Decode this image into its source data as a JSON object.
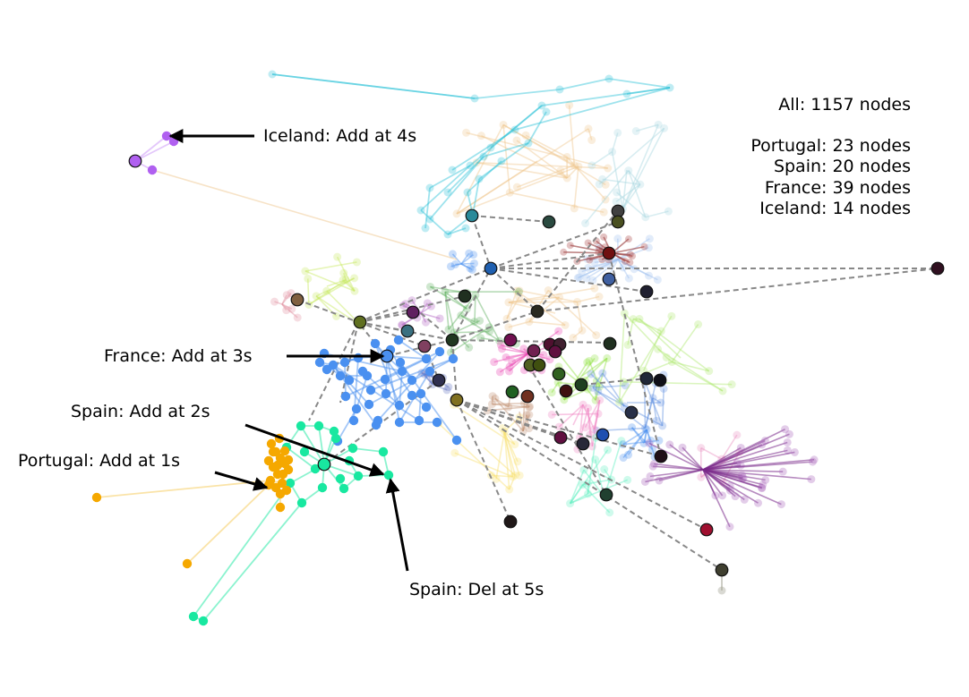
{
  "stats": {
    "total": "All: 1157 nodes",
    "countries": [
      "Portugal: 23 nodes",
      "Spain: 20 nodes",
      "France: 39 nodes",
      "Iceland: 14 nodes"
    ]
  },
  "annotations": {
    "iceland_add": "Iceland: Add at 4s",
    "france_add": "France: Add at 3s",
    "spain_add": "Spain: Add at 2s",
    "portugal_add": "Portugal: Add at 1s",
    "spain_del": "Spain: Del at 5s"
  },
  "colors": {
    "portugal": "#f5a800",
    "spain": "#18e8a0",
    "france": "#4a90f0",
    "iceland": "#b060f0",
    "north_cluster": "#2bc0d8",
    "inter_edge": "#888888",
    "arrow": "#000000"
  }
}
